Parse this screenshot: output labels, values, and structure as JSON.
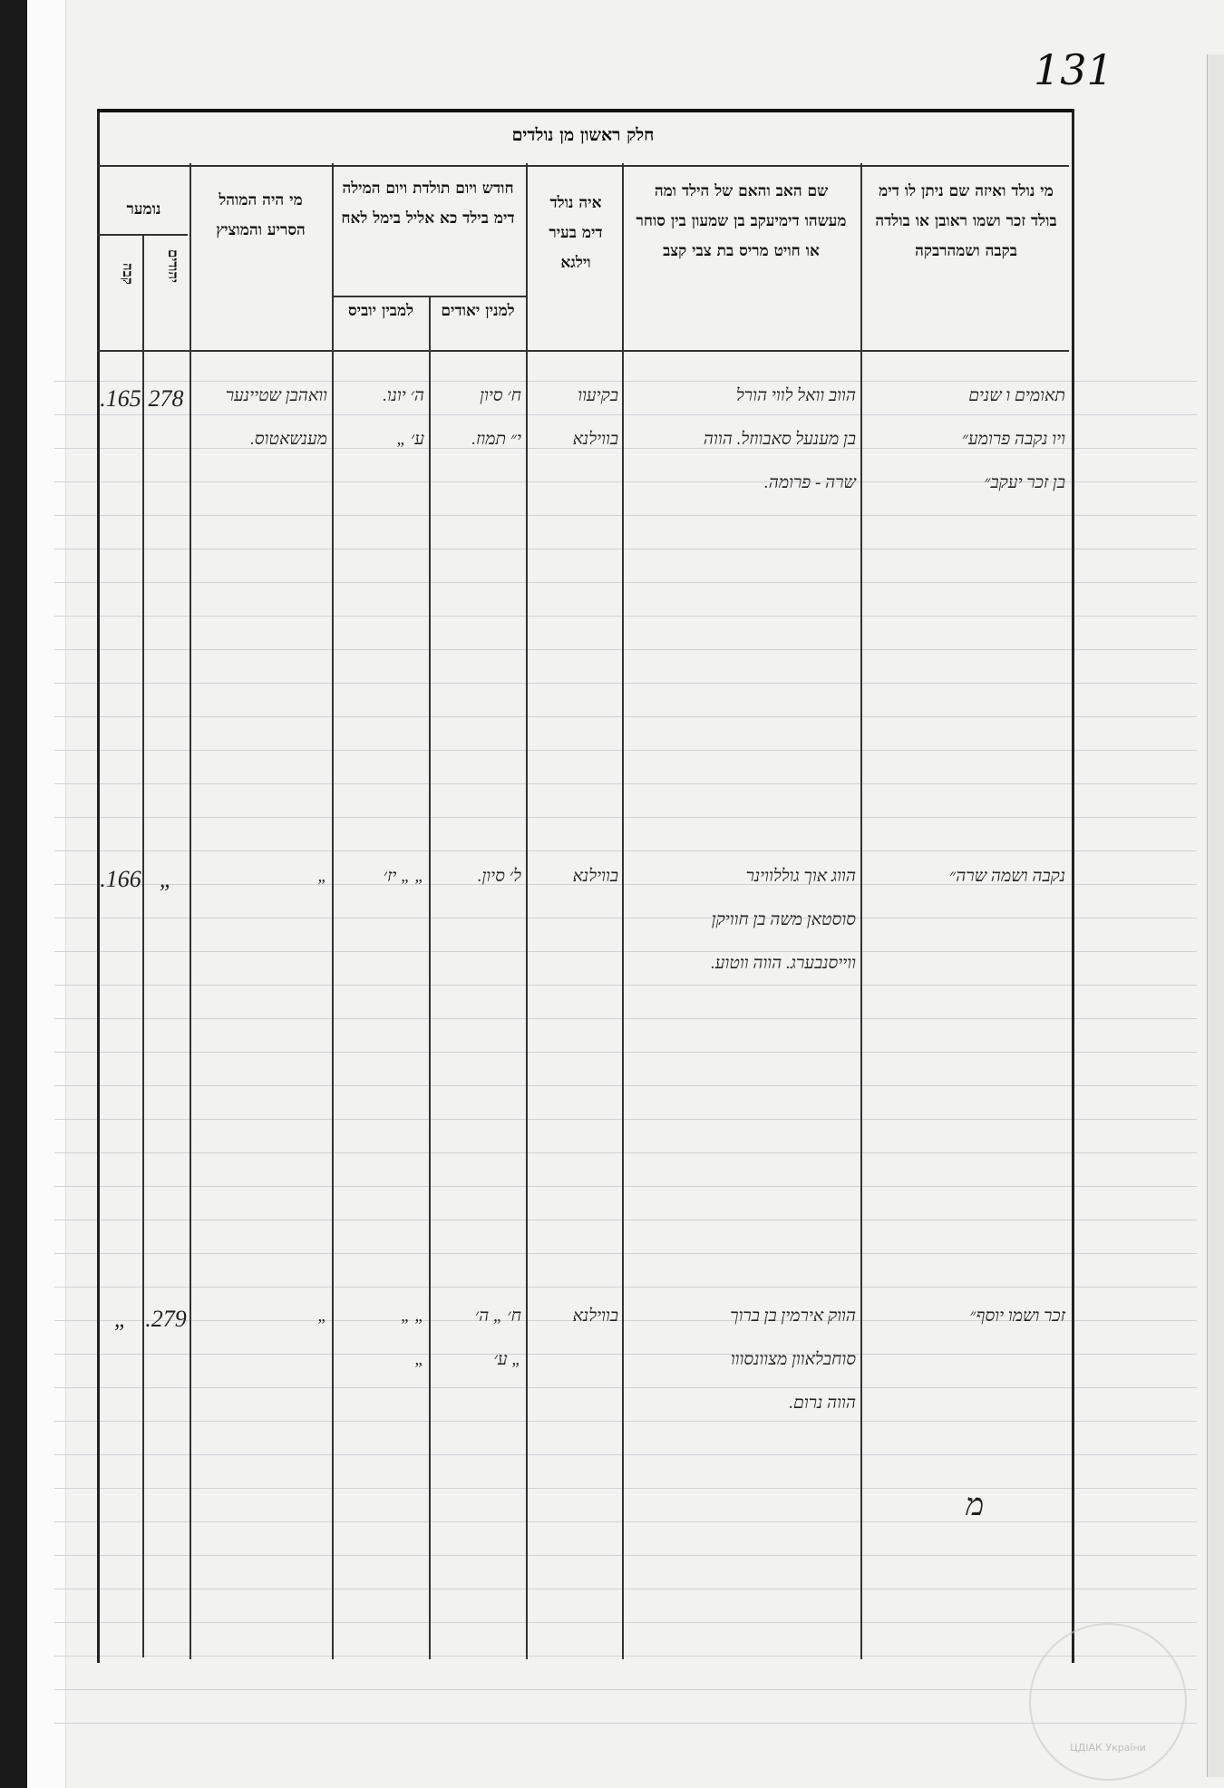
{
  "page_number": "131",
  "section_title": "חלק ראשון מן נולדים",
  "columns": {
    "number_group": "נומער",
    "number_jews": "יהודים",
    "number_sub2": "קבה",
    "mohel": "מי היה המוהל הסריע והמוציץ",
    "dates": "חודש ויום תולדת ויום המילה דימ בילד כא אליל בימל לאח",
    "dates_jewish": "למנין יאודים",
    "dates_gentile": "למבין יוביס",
    "place": "איה נולד דימ בעיר וילגא",
    "parents": "שם האב והאם של הילד ומה מעשהו דימיעקב בן שמעון בין סוחר או חויט מריס בת צבי קצב",
    "child": "מי נולד ואיזה שם ניתן לו דימ בולד זכר ושמו ראובן או בולדה בקבה ושמהרבקה"
  },
  "entries": [
    {
      "no_a": "165.",
      "no_b": "278",
      "mohel": [
        "וואהבן שטיינער",
        "מענשאטוס."
      ],
      "date_jewish": [
        "ח׳ סיון",
        "י״ תמוז."
      ],
      "date_gentile": [
        "ה׳ יונו.",
        "ע׳ „"
      ],
      "place": [
        "בקיעוו",
        "בווילנא"
      ],
      "parents": [
        "הווב וואל לווי הורל",
        "בן מענעל סאבווזל. הווה",
        "שרה - פרומה."
      ],
      "child": [
        "תאומים ו שנים",
        "ויו נקבה פרומע״",
        "בן זכר יעקב״"
      ]
    },
    {
      "no_a": "166.",
      "no_b": "„",
      "mohel": [
        "„"
      ],
      "date_jewish": [
        "ל׳ סיון."
      ],
      "date_gentile": [
        "„ „ יז׳"
      ],
      "place": [
        "בווילנא"
      ],
      "parents": [
        "הווג אוך גוללווינר",
        "סוסטאן משה בן חוויקן",
        "ווייסנבערג. הווה ווטוע."
      ],
      "child": [
        "נקבה ושמה שרה״"
      ]
    },
    {
      "no_a": "„",
      "no_b": "279.",
      "mohel": [
        "„"
      ],
      "date_jewish": [
        "ח׳ „ ה׳",
        "„ ע׳"
      ],
      "date_gentile": [
        "„ „",
        "„"
      ],
      "place": [
        "בווילנא"
      ],
      "parents": [
        "הווק אירמין בן ברוך",
        "סוחבלאוון מצוונסווו",
        "הווה נרום."
      ],
      "child": [
        "זכר ושמו יוסף״"
      ]
    }
  ],
  "signature": "מ",
  "archive_stamp": "ЦДІАК України"
}
